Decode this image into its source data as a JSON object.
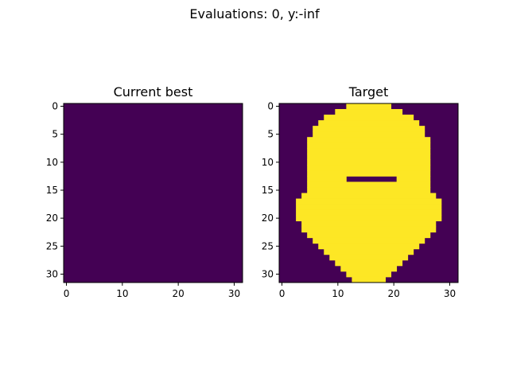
{
  "figure": {
    "suptitle": "Evaluations: 0, y:-inf"
  },
  "colors": {
    "low": "#440154",
    "high": "#fde725",
    "axis": "#000000",
    "background": "#ffffff"
  },
  "chart_data": [
    {
      "type": "heatmap",
      "title": "Current best",
      "xlabel": "",
      "ylabel": "",
      "shape": [
        32,
        32
      ],
      "colormap": "viridis",
      "xlim": [
        -0.5,
        31.5
      ],
      "ylim": [
        31.5,
        -0.5
      ],
      "xticks": [
        0,
        10,
        20,
        30
      ],
      "yticks": [
        0,
        5,
        10,
        15,
        20,
        25,
        30
      ],
      "grid": false,
      "note_values": "binary grid, 0 = purple, 1 = yellow",
      "value": 0
    },
    {
      "type": "heatmap",
      "title": "Target",
      "xlabel": "",
      "ylabel": "",
      "shape": [
        32,
        32
      ],
      "colormap": "viridis",
      "xlim": [
        -0.5,
        31.5
      ],
      "ylim": [
        31.5,
        -0.5
      ],
      "xticks": [
        0,
        10,
        20,
        30
      ],
      "yticks": [
        0,
        5,
        10,
        15,
        20,
        25,
        30
      ],
      "grid": false,
      "rows": [
        "00000000000011111111000000000000",
        "00000000001111111111110000000000",
        "00000000111111111111111100000000",
        "00000001111111111111111110000000",
        "00000011111111111111111111000000",
        "00000011111111111111111111000000",
        "00000111111111111111111111100000",
        "00000111111111111111111111100000",
        "00000111111111111111111111100000",
        "00000111111111111111111111100000",
        "00000111111111111111111111100000",
        "00000111111111111111111111100000",
        "00000111111111111111111111100000",
        "00000111111100000000011111100000",
        "00000111111111111111111111100000",
        "00000111111111111111111111100000",
        "00001111111111111111111111110000",
        "00011111111111111111111111111000",
        "00011111111111111111111111111000",
        "00011111111111111111111111111000",
        "00011111111111111111111111111000",
        "00001111111111111111111111110000",
        "00001111111111111111111111110000",
        "00000111111111111111111111100000",
        "00000011111111111111111111000000",
        "00000001111111111111111110000000",
        "00000000111111111111111100000000",
        "00000000011111111111111000000000",
        "00000000001111111111110000000000",
        "00000000000111111111100000000000",
        "00000000000011111111000000000000",
        "00000000000001111110000000000000"
      ]
    }
  ]
}
